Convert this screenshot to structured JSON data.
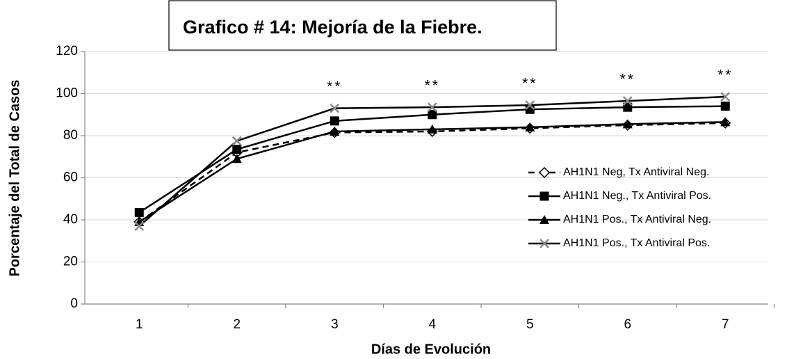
{
  "chart_data": {
    "type": "line",
    "title": "Grafico # 14: Mejoría de la Fiebre.",
    "xlabel": "Días de Evolución",
    "ylabel": "Porcentaje del Total de Casos",
    "categories": [
      "1",
      "2",
      "3",
      "4",
      "5",
      "6",
      "7"
    ],
    "ylim": [
      0,
      120
    ],
    "yticks": [
      0,
      20,
      40,
      60,
      80,
      100,
      120
    ],
    "grid": true,
    "annotations": [
      "**",
      "**",
      "**",
      "**",
      "**"
    ],
    "series": [
      {
        "name": "AH1N1 Neg, Tx Antiviral Neg.",
        "color": "#000000",
        "marker": "diamond",
        "dash": true,
        "values": [
          39,
          72,
          81.5,
          82,
          83.5,
          85,
          86
        ]
      },
      {
        "name": "AH1N1 Neg., Tx Antiviral Pos.",
        "color": "#000000",
        "marker": "square",
        "dash": false,
        "values": [
          43.5,
          73.5,
          87,
          90,
          92.5,
          93.5,
          94
        ]
      },
      {
        "name": "AH1N1 Pos., Tx Antiviral Neg.",
        "color": "#000000",
        "marker": "triangle",
        "dash": false,
        "values": [
          39,
          69,
          82,
          83,
          84,
          85.5,
          86.5
        ]
      },
      {
        "name": "AH1N1 Pos., Tx Antiviral Pos.",
        "color": "#000000",
        "marker": "cross",
        "dash": false,
        "values": [
          37,
          77.5,
          93,
          93.5,
          94.5,
          96.5,
          98.5
        ]
      }
    ],
    "legend": "right"
  }
}
